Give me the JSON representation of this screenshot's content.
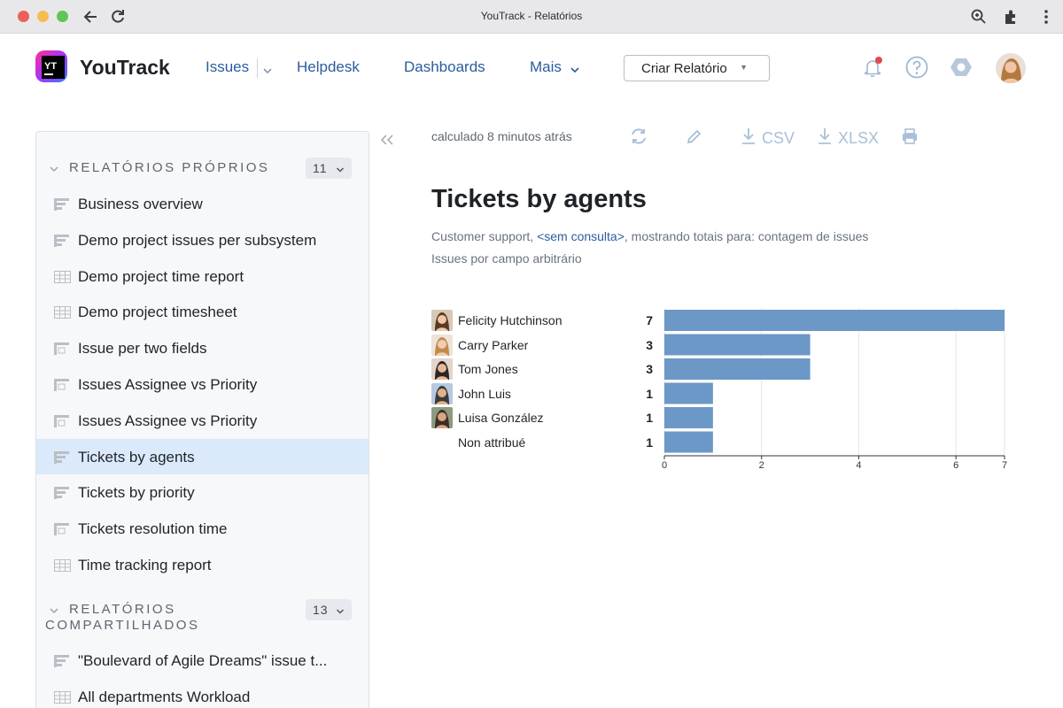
{
  "window": {
    "title": "YouTrack - Relatórios"
  },
  "header": {
    "brand": "YouTrack",
    "nav": [
      {
        "label": "Issues"
      },
      {
        "label": "Helpdesk"
      },
      {
        "label": "Dashboards"
      },
      {
        "label": "Mais"
      }
    ],
    "create_button": "Criar Relatório",
    "notification_dot_color": "#e5484d"
  },
  "sidebar": {
    "own": {
      "title": "RELATÓRIOS PRÓPRIOS",
      "count": "11",
      "items": [
        {
          "label": "Business overview",
          "icon": "bar-report-icon"
        },
        {
          "label": "Demo project issues per subsystem",
          "icon": "bar-report-icon"
        },
        {
          "label": "Demo project time report",
          "icon": "table-report-icon"
        },
        {
          "label": "Demo project timesheet",
          "icon": "table-report-icon"
        },
        {
          "label": "Issue per two fields",
          "icon": "matrix-report-icon"
        },
        {
          "label": "Issues Assignee vs Priority",
          "icon": "matrix-report-icon"
        },
        {
          "label": "Issues Assignee vs Priority",
          "icon": "matrix-report-icon"
        },
        {
          "label": "Tickets by agents",
          "icon": "bar-report-icon",
          "active": true
        },
        {
          "label": "Tickets by priority",
          "icon": "bar-report-icon"
        },
        {
          "label": "Tickets resolution time",
          "icon": "matrix-report-icon"
        },
        {
          "label": "Time tracking report",
          "icon": "table-report-icon"
        }
      ]
    },
    "shared": {
      "title_line1": "RELATÓRIOS",
      "title_line2": "COMPARTILHADOS",
      "count": "13",
      "items": [
        {
          "label": "\"Boulevard of Agile Dreams\" issue t...",
          "icon": "bar-report-icon"
        },
        {
          "label": "All departments Workload",
          "icon": "table-report-icon"
        }
      ]
    }
  },
  "toolbar": {
    "calculated": "calculado 8 minutos atrás",
    "csv": "CSV",
    "xlsx": "XLSX"
  },
  "report": {
    "title": "Tickets by agents",
    "subtitle_prefix": "Customer support, ",
    "subtitle_link": "<sem consulta>",
    "subtitle_suffix": ", mostrando totais para: contagem de issues",
    "subtitle2": "Issues por campo arbitrário"
  },
  "chart_data": {
    "type": "bar",
    "orientation": "horizontal",
    "categories": [
      "Felicity Hutchinson",
      "Carry Parker",
      "Tom Jones",
      "John Luis",
      "Luisa González",
      "Non attribué"
    ],
    "values": [
      7,
      3,
      3,
      1,
      1,
      1
    ],
    "xlim": [
      0,
      7
    ],
    "xticks": [
      0,
      2,
      4,
      6,
      7
    ],
    "grid": true,
    "bar_color": "#6b98c6"
  }
}
